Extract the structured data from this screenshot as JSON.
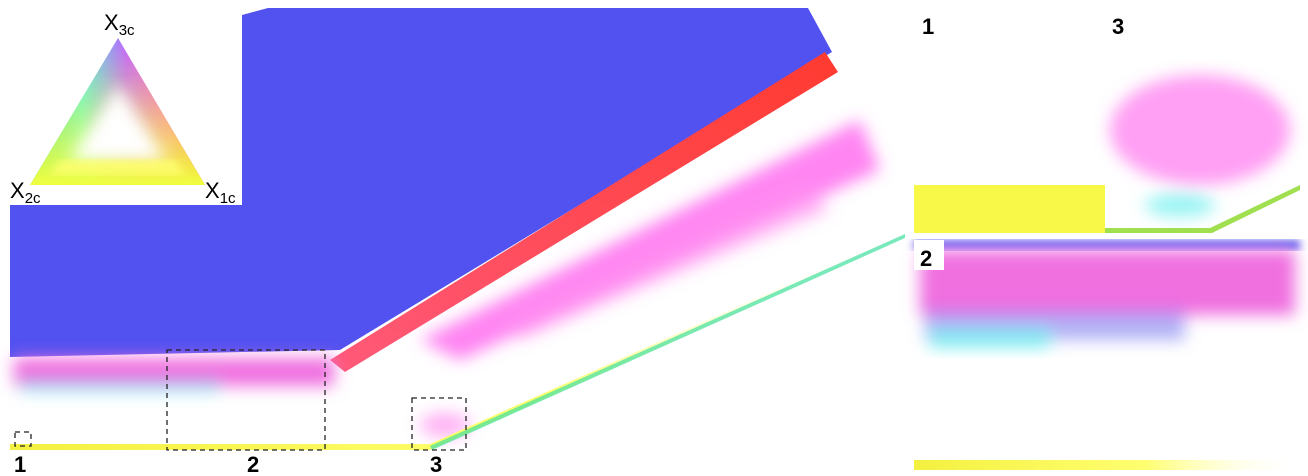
{
  "legend": {
    "vertices": [
      {
        "main": "X",
        "sub": "3c"
      },
      {
        "main": "X",
        "sub": "2c"
      },
      {
        "main": "X",
        "sub": "1c"
      }
    ]
  },
  "regions": {
    "main": [
      "1",
      "2",
      "3"
    ],
    "insets": [
      "1",
      "3",
      "2"
    ]
  }
}
